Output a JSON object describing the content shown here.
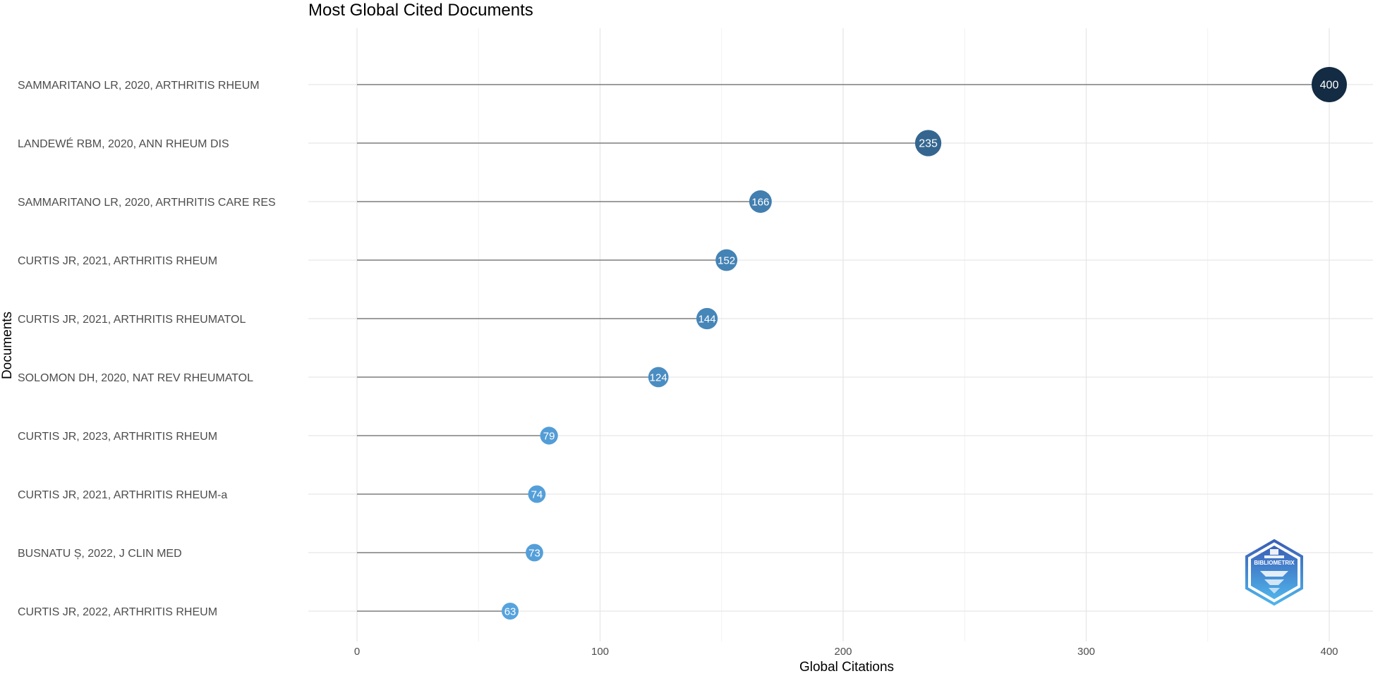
{
  "chart_data": {
    "type": "lollipop",
    "title": "Most Global Cited Documents",
    "xlabel": "Global Citations",
    "ylabel": "Documents",
    "xlim": [
      -20,
      420
    ],
    "x_ticks": [
      0,
      100,
      200,
      300,
      400
    ],
    "grid": true,
    "legend": "none",
    "categories": [
      "SAMMARITANO LR, 2020, ARTHRITIS RHEUM",
      "LANDEWÉ RBM, 2020, ANN RHEUM DIS",
      "SAMMARITANO LR, 2020, ARTHRITIS CARE RES",
      "CURTIS JR, 2021, ARTHRITIS RHEUM",
      "CURTIS JR, 2021, ARTHRITIS RHEUMATOL",
      "SOLOMON DH, 2020, NAT REV RHEUMATOL",
      "CURTIS JR, 2023, ARTHRITIS RHEUM",
      "CURTIS JR, 2021, ARTHRITIS RHEUM-a",
      "BUSNATU Ș, 2022, J CLIN MED",
      "CURTIS JR, 2022, ARTHRITIS RHEUM"
    ],
    "values": [
      400,
      235,
      166,
      152,
      144,
      124,
      79,
      74,
      73,
      63
    ],
    "color_scale": {
      "low": "#56a3de",
      "high": "#132b43"
    },
    "logo_text": "BIBLIOMETRIX"
  }
}
